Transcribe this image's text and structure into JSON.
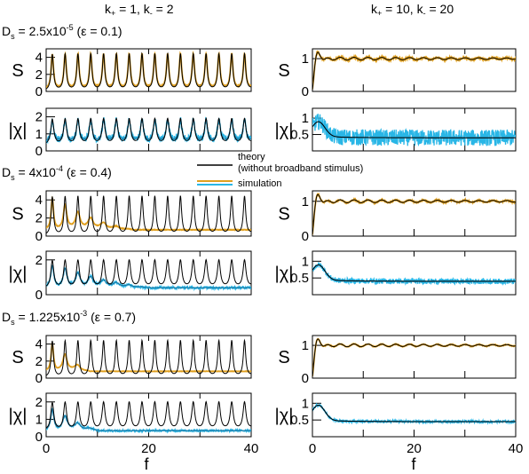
{
  "columns": [
    {
      "text": "k",
      "sub1": "+",
      "mid": " = 1, k",
      "sub2": "-",
      "tail": " = 2"
    },
    {
      "text": "k",
      "sub1": "+",
      "mid": " = 10, k",
      "sub2": "-",
      "tail": " = 20"
    }
  ],
  "rows": [
    {
      "pre": "D",
      "sub": "s",
      "mid": " = 2.5x10",
      "sup": "-5",
      "tail": " (ε = 0.1)"
    },
    {
      "pre": "D",
      "sub": "s",
      "mid": " = 4x10",
      "sup": "-4",
      "tail": " (ε = 0.4)"
    },
    {
      "pre": "D",
      "sub": "s",
      "mid": " = 1.225x10",
      "sup": "-3",
      "tail": " (ε = 0.7)"
    }
  ],
  "legend": {
    "items": [
      {
        "label": "theory",
        "color": "#000000"
      },
      {
        "label": "(without broadband stimulus)",
        "color": ""
      },
      {
        "label": "simulation",
        "color": "#e0a020",
        "color2": "#29b6e6"
      }
    ]
  },
  "colors": {
    "theory": "#000000",
    "sim_S": "#e0a020",
    "sim_chi": "#29b6e6",
    "sim_chi_mean": "#1a6f99"
  },
  "chart_data": {
    "type": "line",
    "x_label": "f",
    "x_ticks": [
      "0",
      "20",
      "40"
    ],
    "xlim": [
      0,
      40
    ],
    "panels": [
      {
        "row": 0,
        "col": 0,
        "ylabel": "S",
        "yticks": [
          "0",
          "2",
          "4"
        ],
        "ylim": [
          0,
          5
        ],
        "kind": "S",
        "peak_period": 2.5,
        "theory_peak": 4.5,
        "sim_peak": 4.5,
        "sim_floor": 0.2,
        "noise": 0.05
      },
      {
        "row": 0,
        "col": 0,
        "ylabel": "|χ|",
        "yticks": [
          "0",
          "1",
          "2"
        ],
        "ylim": [
          0,
          2.5
        ],
        "kind": "chi",
        "peak_period": 2.5,
        "theory_peak": 1.9,
        "sim_peak": 1.8,
        "sim_floor": 0.5,
        "noise": 0.2
      },
      {
        "row": 0,
        "col": 1,
        "ylabel": "S",
        "yticks": [
          "0",
          "1"
        ],
        "ylim": [
          0,
          1.3
        ],
        "kind": "S2",
        "level": 1.0,
        "noise": 0.05
      },
      {
        "row": 0,
        "col": 1,
        "ylabel": "|χ|",
        "yticks": [
          "0.5",
          "1"
        ],
        "ylim": [
          0,
          1.3
        ],
        "kind": "chi2",
        "level": 0.4,
        "noise": 0.25
      },
      {
        "row": 1,
        "col": 0,
        "ylabel": "S",
        "yticks": [
          "0",
          "2",
          "4"
        ],
        "ylim": [
          0,
          5
        ],
        "kind": "S",
        "peak_period": 2.5,
        "theory_peak": 4.5,
        "sim_peak": 4.3,
        "sim_decay": 0.12,
        "sim_floor": 0.7,
        "noise": 0.03
      },
      {
        "row": 1,
        "col": 0,
        "ylabel": "|χ|",
        "yticks": [
          "0",
          "2"
        ],
        "ylim": [
          0,
          2.5
        ],
        "kind": "chi",
        "peak_period": 2.5,
        "theory_peak": 2.0,
        "sim_peak": 1.7,
        "sim_decay": 0.08,
        "sim_floor": 0.4,
        "noise": 0.08
      },
      {
        "row": 1,
        "col": 1,
        "ylabel": "S",
        "yticks": [
          "0",
          "1"
        ],
        "ylim": [
          0,
          1.3
        ],
        "kind": "S2",
        "level": 1.0,
        "noise": 0.03
      },
      {
        "row": 1,
        "col": 1,
        "ylabel": "|χ|",
        "yticks": [
          "0.5",
          "1"
        ],
        "ylim": [
          0,
          1.3
        ],
        "kind": "chi2",
        "level": 0.4,
        "noise": 0.08
      },
      {
        "row": 2,
        "col": 0,
        "ylabel": "S",
        "yticks": [
          "0",
          "2",
          "4"
        ],
        "ylim": [
          0,
          5
        ],
        "kind": "S",
        "peak_period": 2.5,
        "theory_peak": 4.5,
        "sim_peak": 4.2,
        "sim_decay": 0.25,
        "sim_floor": 0.8,
        "noise": 0.02
      },
      {
        "row": 2,
        "col": 0,
        "ylabel": "|χ|",
        "yticks": [
          "0",
          "1",
          "2"
        ],
        "ylim": [
          0,
          2.5
        ],
        "kind": "chi",
        "peak_period": 2.5,
        "theory_peak": 2.0,
        "sim_peak": 1.6,
        "sim_decay": 0.18,
        "sim_floor": 0.35,
        "noise": 0.06
      },
      {
        "row": 2,
        "col": 1,
        "ylabel": "S",
        "yticks": [
          "0",
          "1"
        ],
        "ylim": [
          0,
          1.3
        ],
        "kind": "S2",
        "level": 1.0,
        "noise": 0.02
      },
      {
        "row": 2,
        "col": 1,
        "ylabel": "|χ|",
        "yticks": [
          "0.5",
          "1"
        ],
        "ylim": [
          0,
          1.3
        ],
        "kind": "chi2",
        "level": 0.45,
        "noise": 0.04
      }
    ]
  }
}
